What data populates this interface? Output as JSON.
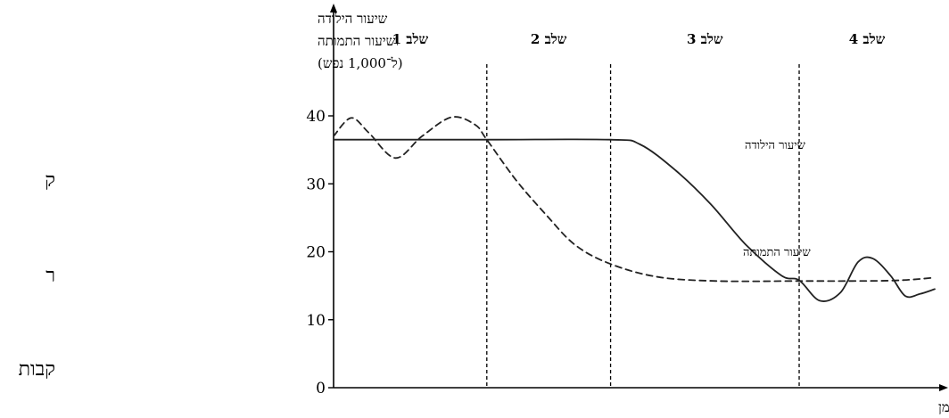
{
  "chart_data": {
    "type": "line",
    "ylabel_lines": [
      "שיעור הילודה",
      "ושיעור התמותה",
      "(ל־1,000 נפש)"
    ],
    "xlabel": "זמן",
    "yticks": [
      0,
      10,
      20,
      30,
      40
    ],
    "ylim": [
      0,
      40
    ],
    "stages": [
      "שלב 1",
      "שלב 2",
      "שלב 3",
      "שלב 4"
    ],
    "stage_boundaries": [
      0.26,
      0.47,
      0.79
    ],
    "series": [
      {
        "name": "שיעור הילודה",
        "style": "solid",
        "points": [
          [
            0.0,
            36.5
          ],
          [
            0.26,
            36.5
          ],
          [
            0.47,
            36.5
          ],
          [
            0.52,
            35.8
          ],
          [
            0.58,
            32.0
          ],
          [
            0.64,
            27.0
          ],
          [
            0.7,
            21.0
          ],
          [
            0.76,
            16.5
          ],
          [
            0.79,
            15.8
          ],
          [
            0.825,
            12.8
          ],
          [
            0.86,
            14.0
          ],
          [
            0.89,
            18.5
          ],
          [
            0.915,
            19.0
          ],
          [
            0.945,
            16.5
          ],
          [
            0.97,
            13.5
          ],
          [
            0.995,
            13.8
          ],
          [
            1.02,
            14.5
          ]
        ]
      },
      {
        "name": "שיעור התמותה",
        "style": "dashed",
        "points": [
          [
            0.0,
            37.0
          ],
          [
            0.03,
            39.7
          ],
          [
            0.06,
            37.5
          ],
          [
            0.105,
            33.8
          ],
          [
            0.15,
            37.0
          ],
          [
            0.2,
            39.8
          ],
          [
            0.24,
            38.7
          ],
          [
            0.26,
            36.5
          ],
          [
            0.31,
            30.5
          ],
          [
            0.36,
            25.5
          ],
          [
            0.41,
            21.0
          ],
          [
            0.47,
            18.2
          ],
          [
            0.55,
            16.3
          ],
          [
            0.65,
            15.7
          ],
          [
            0.79,
            15.7
          ],
          [
            0.88,
            15.7
          ],
          [
            0.96,
            15.8
          ],
          [
            1.02,
            16.2
          ]
        ]
      }
    ],
    "curve_labels": [
      "שיעור הילודה",
      "שיעור התמותה"
    ],
    "grid": false
  },
  "side_fragments": [
    "ק",
    "ר",
    "קבות"
  ]
}
